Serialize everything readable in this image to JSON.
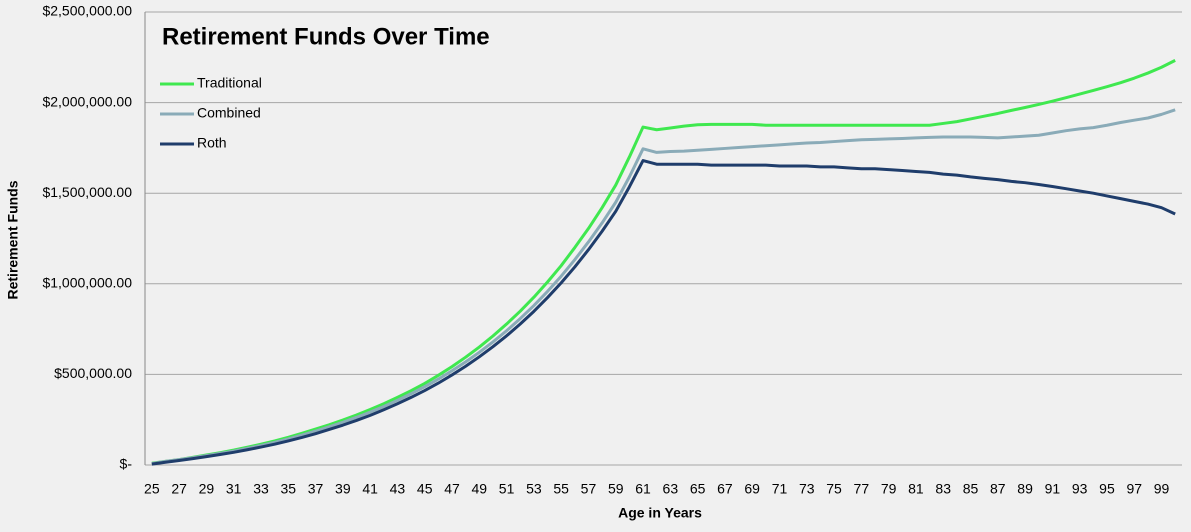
{
  "chart_data": {
    "type": "line",
    "title": "Retirement Funds Over Time",
    "x_label": "Age in Years",
    "y_label": "Retirement Funds",
    "categories": [
      "25",
      null,
      "27",
      null,
      "29",
      null,
      "31",
      null,
      "33",
      null,
      "35",
      null,
      "37",
      null,
      "39",
      null,
      "41",
      null,
      "43",
      null,
      "45",
      null,
      "47",
      null,
      "49",
      null,
      "51",
      null,
      "53",
      null,
      "55",
      null,
      "57",
      null,
      "59",
      null,
      "61",
      null,
      "63",
      null,
      "65",
      null,
      "67",
      null,
      "69",
      null,
      "71",
      null,
      "73",
      null,
      "75",
      null,
      "77",
      null,
      "79",
      null,
      "81",
      null,
      "83",
      null,
      "85",
      null,
      "87",
      null,
      "89",
      null,
      "91",
      null,
      "93",
      null,
      "95",
      null,
      "97",
      null,
      "99",
      null
    ],
    "series": [
      {
        "name": "Traditional",
        "color": "#3fe84f",
        "values": [
          10000,
          20000,
          30000,
          42000,
          55000,
          68000,
          82000,
          98000,
          115000,
          133000,
          153000,
          175000,
          198000,
          222000,
          248000,
          276000,
          306000,
          338000,
          373000,
          410000,
          450000,
          495000,
          543000,
          595000,
          651000,
          712000,
          778000,
          849000,
          926000,
          1010000,
          1100000,
          1200000,
          1305000,
          1420000,
          1545000,
          1700000,
          1865000,
          1850000,
          1860000,
          1870000,
          1878000,
          1880000,
          1880000,
          1880000,
          1880000,
          1875000,
          1875000,
          1875000,
          1875000,
          1875000,
          1875000,
          1875000,
          1875000,
          1875000,
          1875000,
          1875000,
          1875000,
          1875000,
          1885000,
          1895000,
          1910000,
          1925000,
          1940000,
          1957000,
          1973000,
          1990000,
          2008000,
          2027000,
          2047000,
          2067000,
          2088000,
          2110000,
          2135000,
          2163000,
          2195000,
          2233000
        ]
      },
      {
        "name": "Combined",
        "color": "#8aabb8",
        "values": [
          8000,
          20000,
          30000,
          40000,
          52000,
          64000,
          77000,
          92000,
          108000,
          125000,
          144000,
          165000,
          187000,
          211000,
          236000,
          263000,
          292000,
          323000,
          357000,
          393000,
          432000,
          474000,
          520000,
          569000,
          622000,
          679000,
          741000,
          808000,
          880000,
          958000,
          1042000,
          1133000,
          1231000,
          1336000,
          1450000,
          1590000,
          1745000,
          1725000,
          1730000,
          1732000,
          1737000,
          1742000,
          1747000,
          1752000,
          1757000,
          1762000,
          1767000,
          1772000,
          1777000,
          1780000,
          1785000,
          1790000,
          1795000,
          1797000,
          1800000,
          1802000,
          1805000,
          1808000,
          1810000,
          1810000,
          1810000,
          1808000,
          1805000,
          1810000,
          1815000,
          1820000,
          1832000,
          1845000,
          1855000,
          1862000,
          1875000,
          1890000,
          1903000,
          1915000,
          1935000,
          1960000
        ]
      },
      {
        "name": "Roth",
        "color": "#1f3d6b",
        "values": [
          5000,
          15000,
          25000,
          35000,
          46000,
          58000,
          70000,
          84000,
          99000,
          115000,
          133000,
          152000,
          173000,
          196000,
          220000,
          246000,
          274000,
          305000,
          338000,
          373000,
          411000,
          452000,
          497000,
          545000,
          597000,
          653000,
          713000,
          778000,
          848000,
          924000,
          1005000,
          1093000,
          1188000,
          1290000,
          1400000,
          1535000,
          1680000,
          1660000,
          1660000,
          1660000,
          1660000,
          1655000,
          1655000,
          1655000,
          1655000,
          1655000,
          1650000,
          1650000,
          1650000,
          1645000,
          1645000,
          1640000,
          1635000,
          1635000,
          1630000,
          1625000,
          1620000,
          1615000,
          1605000,
          1600000,
          1590000,
          1582000,
          1575000,
          1565000,
          1558000,
          1548000,
          1537000,
          1525000,
          1512000,
          1500000,
          1485000,
          1470000,
          1455000,
          1440000,
          1420000,
          1385000
        ]
      }
    ],
    "ylim": [
      0,
      2500000
    ],
    "yticks": [
      {
        "value": 0,
        "label": "$-"
      },
      {
        "value": 500000,
        "label": "$500,000.00"
      },
      {
        "value": 1000000,
        "label": "$1,000,000.00"
      },
      {
        "value": 1500000,
        "label": "$1,500,000.00"
      },
      {
        "value": 2000000,
        "label": "$2,000,000.00"
      },
      {
        "value": 2500000,
        "label": "$2,500,000.00"
      }
    ],
    "grid": true,
    "legend": "top-left"
  }
}
